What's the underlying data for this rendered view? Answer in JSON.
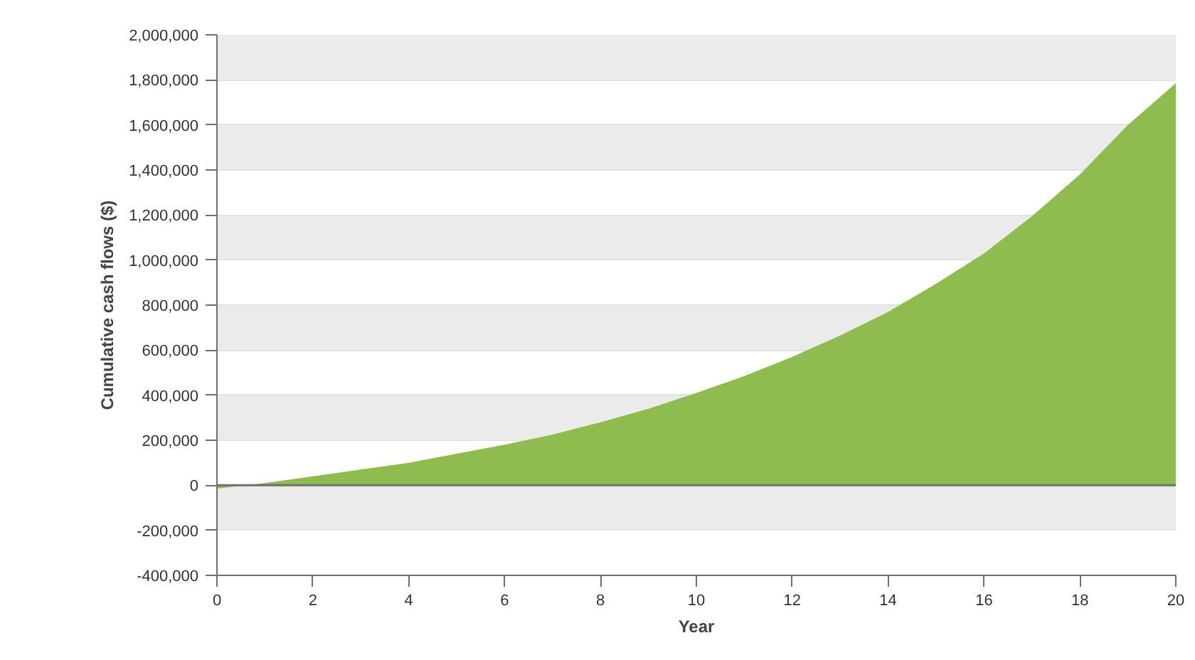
{
  "chart_data": {
    "type": "area",
    "xlabel": "Year",
    "ylabel": "Cumulative cash flows ($)",
    "x": [
      0,
      1,
      2,
      3,
      4,
      5,
      6,
      7,
      8,
      9,
      10,
      11,
      12,
      13,
      14,
      15,
      16,
      17,
      18,
      19,
      20
    ],
    "series": [
      {
        "color": "#8fbc4f",
        "values": [
          -15000,
          10000,
          40000,
          70000,
          100000,
          140000,
          180000,
          225000,
          280000,
          340000,
          410000,
          485000,
          570000,
          665000,
          770000,
          895000,
          1030000,
          1195000,
          1380000,
          1600000,
          1785000
        ]
      }
    ],
    "xlim": [
      0,
      20
    ],
    "xticks": [
      0,
      2,
      4,
      6,
      8,
      10,
      12,
      14,
      16,
      18,
      20
    ],
    "ylim": [
      -400000,
      2000000
    ],
    "yticks": [
      {
        "value": -400000,
        "label": "-400,000"
      },
      {
        "value": -200000,
        "label": "-200,000"
      },
      0,
      {
        "value": 200000,
        "label": "200,000"
      },
      {
        "value": 400000,
        "label": "400,000"
      },
      {
        "value": 600000,
        "label": "600,000"
      },
      {
        "value": 800000,
        "label": "800,000"
      },
      {
        "value": 1000000,
        "label": "1,000,000"
      },
      {
        "value": 1200000,
        "label": "1,200,000"
      },
      {
        "value": 1400000,
        "label": "1,400,000"
      },
      {
        "value": 1600000,
        "label": "1,600,000"
      },
      {
        "value": 1800000,
        "label": "1,800,000"
      },
      {
        "value": 2000000,
        "label": "2,000,000"
      }
    ],
    "grid": "y",
    "ref_lines": [
      {
        "axis": "y",
        "value": 0,
        "color": "#707070"
      }
    ]
  }
}
